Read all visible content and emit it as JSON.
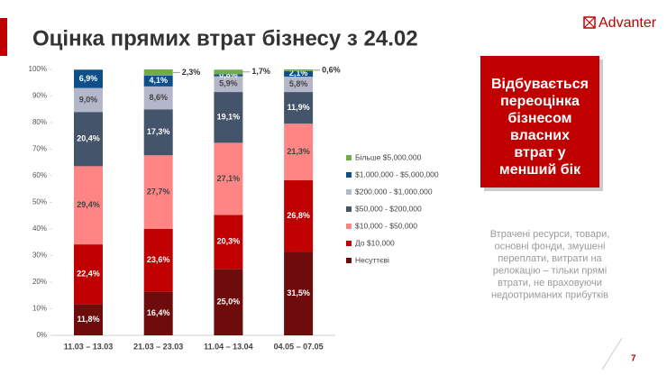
{
  "header": {
    "title": "Оцінка прямих втрат бізнесу з 24.02",
    "logo": "Advanter"
  },
  "callout": {
    "lines": [
      "Відбувається",
      "переоцінка",
      "бізнесом",
      "власних",
      "втрат у",
      "менший бік"
    ]
  },
  "note": {
    "lines": [
      "Втрачені ресурси, товари,",
      "основні фонди, змушені",
      "переплати, витрати на",
      "релокацію – тільки прямі",
      "втрати, не враховуючи",
      "недоотриманих прибутків"
    ]
  },
  "page_number": "7",
  "chart_data": {
    "type": "stacked_bar",
    "categories": [
      "11.03 – 13.03",
      "21.03 – 23.03",
      "11.04 – 13.04",
      "04.05 – 07.05"
    ],
    "series": [
      {
        "name": "Несуттєві",
        "color": "#6e0b0b",
        "values": [
          11.8,
          16.4,
          25.0,
          31.5
        ],
        "value_labels": [
          "11,8%",
          "16,4%",
          "25,0%",
          "31,5%"
        ]
      },
      {
        "name": "До $10,000",
        "color": "#c00000",
        "values": [
          22.4,
          23.6,
          20.3,
          26.8
        ],
        "value_labels": [
          "22,4%",
          "23,6%",
          "20,3%",
          "26,8%"
        ]
      },
      {
        "name": "$10,000 - $50,000",
        "color": "#ff8585",
        "values": [
          29.4,
          27.7,
          27.1,
          21.3
        ],
        "value_labels": [
          "29,4%",
          "27,7%",
          "27,1%",
          "21,3%"
        ]
      },
      {
        "name": "$50,000 - $200,000",
        "color": "#44546a",
        "values": [
          20.4,
          17.3,
          19.1,
          11.9
        ],
        "value_labels": [
          "20,4%",
          "17,3%",
          "19,1%",
          "11,9%"
        ]
      },
      {
        "name": "$200,000 - $1,000,000",
        "color": "#b4b7c9",
        "values": [
          9.0,
          8.6,
          5.9,
          5.8
        ],
        "value_labels": [
          "9,0%",
          "8,6%",
          "5,9%",
          "5,8%"
        ]
      },
      {
        "name": "$1,000,000 - $5,000,000",
        "color": "#0d4f8b",
        "values": [
          6.9,
          4.1,
          0.8,
          2.1
        ],
        "value_labels": [
          "6,9%",
          "4,1%",
          "0,8%",
          "2,1%"
        ]
      },
      {
        "name": "Більше $5,000,000",
        "color": "#70ad47",
        "values": [
          null,
          2.3,
          1.7,
          0.6
        ],
        "value_labels": [
          null,
          "2,3%",
          "1,7%",
          "0,6%"
        ]
      }
    ],
    "ylim": [
      0,
      100
    ],
    "yticks": [
      {
        "value": 0,
        "label": "0%"
      },
      {
        "value": 10,
        "label": "10%"
      },
      {
        "value": 20,
        "label": "20%"
      },
      {
        "value": 30,
        "label": "30%"
      },
      {
        "value": 40,
        "label": "40%"
      },
      {
        "value": 50,
        "label": "50%"
      },
      {
        "value": 60,
        "label": "60%"
      },
      {
        "value": 70,
        "label": "70%"
      },
      {
        "value": 80,
        "label": "80%"
      },
      {
        "value": 90,
        "label": "90%"
      },
      {
        "value": 100,
        "label": "100%"
      }
    ],
    "legend": "right"
  }
}
